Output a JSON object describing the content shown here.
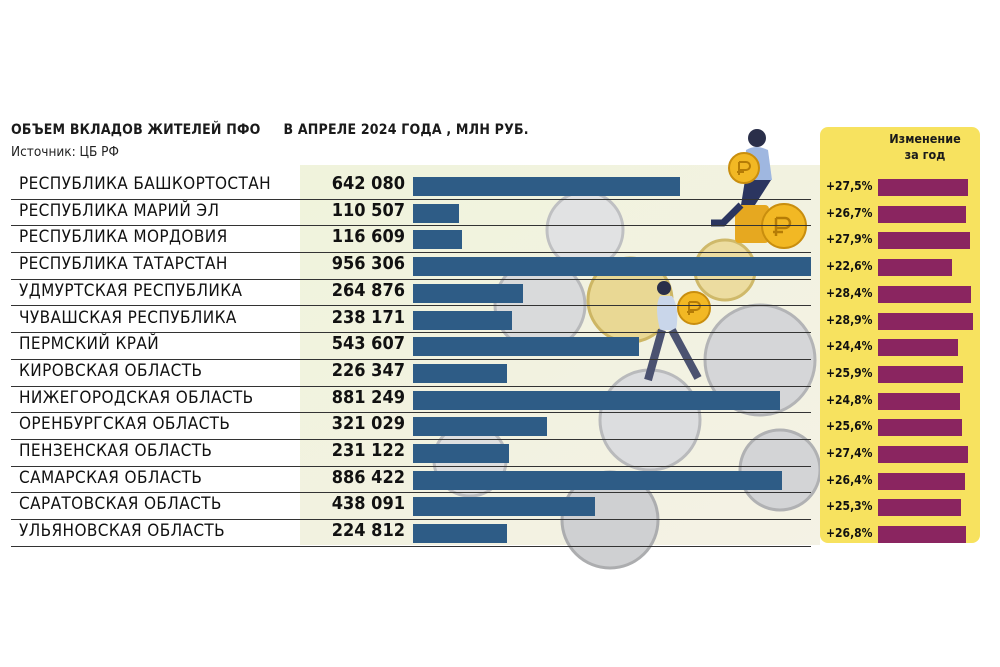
{
  "header": {
    "title_part1": "ОБЪЕМ ВКЛАДОВ ЖИТЕЛЕЙ ПФО",
    "title_part2": "В АПРЕЛЕ 2024 ГОДА , МЛН РУБ.",
    "source": "Источник: ЦБ РФ",
    "change_title_line1": "Изменение",
    "change_title_line2": "за год"
  },
  "colors": {
    "value_bar": "#2e5c86",
    "change_bar": "#8a2560",
    "change_panel": "#f7e25f"
  },
  "chart_data": {
    "type": "bar",
    "orientation": "horizontal",
    "title": "ОБЪЕМ ВКЛАДОВ ЖИТЕЛЕЙ ПФО В АПРЕЛЕ 2024 ГОДА , МЛН РУБ.",
    "categories": [
      "РЕСПУБЛИКА БАШКОРТОСТАН",
      "РЕСПУБЛИКА МАРИЙ ЭЛ",
      "РЕСПУБЛИКА МОРДОВИЯ",
      "РЕСПУБЛИКА ТАТАРСТАН",
      "УДМУРТСКАЯ РЕСПУБЛИКА",
      "ЧУВАШСКАЯ РЕСПУБЛИКА",
      "ПЕРМСКИЙ КРАЙ",
      "КИРОВСКАЯ ОБЛАСТЬ",
      "НИЖЕГОРОДСКАЯ ОБЛАСТЬ",
      "ОРЕНБУРГСКАЯ ОБЛАСТЬ",
      "ПЕНЗЕНСКАЯ ОБЛАСТЬ",
      "САМАРСКАЯ ОБЛАСТЬ",
      "САРАТОВСКАЯ ОБЛАСТЬ",
      "УЛЬЯНОВСКАЯ ОБЛАСТЬ"
    ],
    "value_labels": [
      "642 080",
      "110 507",
      "116 609",
      "956 306",
      "264 876",
      "238 171",
      "543 607",
      "226 347",
      "881 249",
      "321 029",
      "231 122",
      "886 422",
      "438 091",
      "224 812"
    ],
    "values": [
      642080,
      110507,
      116609,
      956306,
      264876,
      238171,
      543607,
      226347,
      881249,
      321029,
      231122,
      886422,
      438091,
      224812
    ],
    "change_labels": [
      "+27,5%",
      "+26,7%",
      "+27,9%",
      "+22,6%",
      "+28,4%",
      "+28,9%",
      "+24,4%",
      "+25,9%",
      "+24,8%",
      "+25,6%",
      "+27,4%",
      "+26,4%",
      "+25,3%",
      "+26,8%"
    ],
    "change_values": [
      27.5,
      26.7,
      27.9,
      22.6,
      28.4,
      28.9,
      24.4,
      25.9,
      24.8,
      25.6,
      27.4,
      26.4,
      25.3,
      26.8
    ],
    "xlim": [
      0,
      956306
    ],
    "change_xlim": [
      0,
      28.9
    ],
    "grid": false,
    "legend": "none"
  }
}
